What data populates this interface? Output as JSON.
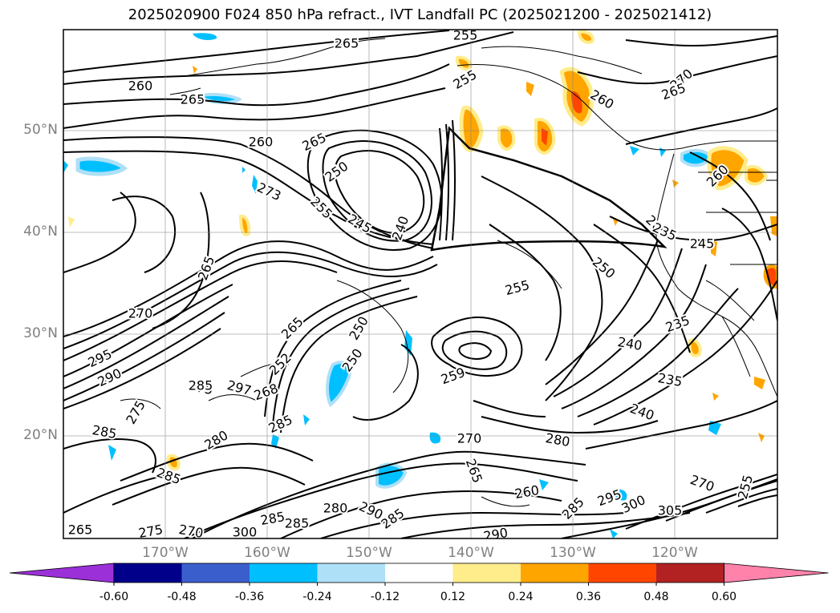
{
  "title": "2025020900 F024 850 hPa refract., IVT Landfall PC (2025021200 - 2025021412)",
  "latitude_labels": [
    "50°N",
    "40°N",
    "30°N",
    "20°N"
  ],
  "longitude_labels": [
    "170°W",
    "160°W",
    "150°W",
    "140°W",
    "130°W",
    "120°W"
  ],
  "colorbar": {
    "tick_labels": [
      "-0.60",
      "-0.48",
      "-0.36",
      "-0.24",
      "-0.12",
      "0.12",
      "0.24",
      "0.36",
      "0.48",
      "0.60"
    ],
    "colors": [
      "#9b30d9",
      "#00008b",
      "#3a5fcd",
      "#00bfff",
      "#aee0f7",
      "#ffffff",
      "#ffec8b",
      "#ffa500",
      "#ff4500",
      "#b22222",
      "#ff82ab"
    ],
    "extend": "both"
  },
  "contour_labels": [
    "265",
    "255",
    "255",
    "260",
    "265",
    "270",
    "265",
    "260",
    "260",
    "265",
    "250",
    "273",
    "255",
    "245",
    "240",
    "260",
    "265",
    "245",
    "235",
    "250",
    "255",
    "270",
    "265",
    "235",
    "240",
    "235",
    "295",
    "290",
    "275",
    "297",
    "268",
    "265",
    "252",
    "250",
    "250",
    "259",
    "240",
    "285",
    "285",
    "275",
    "280",
    "285",
    "270",
    "280",
    "265",
    "260",
    "295",
    "285",
    "300",
    "305",
    "290",
    "280",
    "290",
    "285",
    "300",
    "265",
    "275",
    "270",
    "255",
    "270",
    "285",
    "285",
    "285"
  ],
  "colors": {
    "contour": "#000000",
    "grid": "#808080",
    "coast": "#000000"
  }
}
